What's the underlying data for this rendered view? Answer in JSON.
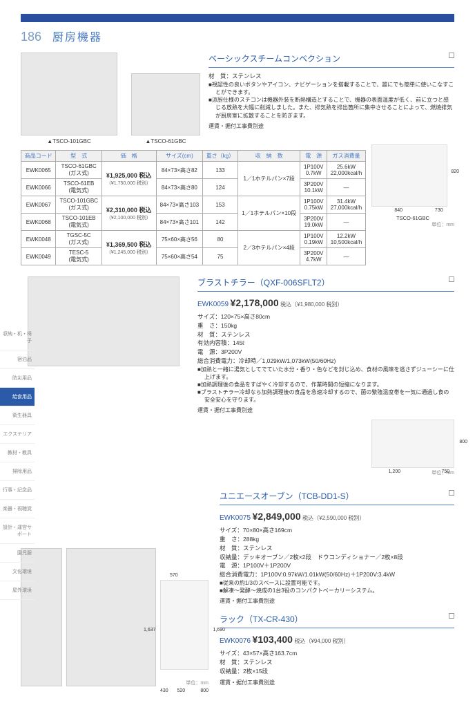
{
  "page": {
    "num": "186",
    "title": "厨房機器"
  },
  "sidebar": {
    "items": [
      {
        "label": "収納・机・椅子",
        "active": false
      },
      {
        "label": "宿泊品",
        "active": false
      },
      {
        "label": "防災用品",
        "active": false
      },
      {
        "label": "給食用品",
        "active": true
      },
      {
        "label": "衛生器具",
        "active": false
      },
      {
        "label": "エクステリア",
        "active": false
      },
      {
        "label": "教材・教具",
        "active": false
      },
      {
        "label": "掃除用品",
        "active": false
      },
      {
        "label": "行事・記念品",
        "active": false
      },
      {
        "label": "楽器・視聴覚",
        "active": false
      },
      {
        "label": "設計・運営サポート",
        "active": false
      },
      {
        "label": "園児服",
        "active": false
      },
      {
        "label": "文化環境",
        "active": false
      },
      {
        "label": "屋外環境",
        "active": false
      }
    ]
  },
  "product1": {
    "title": "ベーシックスチームコンベクション",
    "img1_label": "▲TSCO-101GBC",
    "img2_label": "▲TSCO-61GBC",
    "material": "材　質：ステンレス",
    "bullets": [
      "■視認性の良いボタンやアイコン、ナビゲーションを搭載することで、誰にでも簡単に使いこなすことができます。",
      "■涼厨仕様のスチコンは機器外装を断熱構造とすることで、機器の表面温度が低く、前に立つと感じる放熱を大幅に削減しました。また、排気熱を排出箇所に集中させることによって、燃焼排気が厨房室に拡散することを防ぎます。"
    ],
    "note": "運賃・据付工事費別途",
    "diagram_label": "TSCO-61GBC",
    "unit_label": "単位：mm",
    "dim1": "820",
    "dim2": "840",
    "dim3": "730"
  },
  "tableHeaders": [
    "商品コード",
    "型　式",
    "価　格",
    "サイズ(cm)",
    "重さ（kg）",
    "収　納　数",
    "電　源",
    "ガス消費量"
  ],
  "tableRows": [
    {
      "code": "EWK0065",
      "model": "TSCO-61GBC\n(ガス式)",
      "priceMain": "¥1,925,000 税込",
      "priceSub": "（¥1,750,000 税別）",
      "size": "84×73×高さ82",
      "weight": "133",
      "capacity": "1／1ホテルパン×7段",
      "power": "1P100V\n0.7kW",
      "gas": "25.6kW\n22,000kcal/h",
      "priceRowspan": 2,
      "capRowspan": 2
    },
    {
      "code": "EWK0066",
      "model": "TSCO-61EB\n(電気式)",
      "size": "84×73×高さ80",
      "weight": "124",
      "power": "3P200V\n10.1kW",
      "gas": "―"
    },
    {
      "code": "EWK0067",
      "model": "TSCO-101GBC\n(ガス式)",
      "priceMain": "¥2,310,000 税込",
      "priceSub": "（¥2,100,000 税別）",
      "size": "84×73×高さ103",
      "weight": "153",
      "capacity": "1／1ホテルパン×10段",
      "power": "1P100V\n0.75kW",
      "gas": "31.4kW\n27,000kcal/h",
      "priceRowspan": 2,
      "capRowspan": 2
    },
    {
      "code": "EWK0068",
      "model": "TSCO-101EB\n(電気式)",
      "size": "84×73×高さ101",
      "weight": "142",
      "power": "3P200V\n19.0kW",
      "gas": "―"
    },
    {
      "code": "EWK0048",
      "model": "TGSC-5C\n(ガス式)",
      "priceMain": "¥1,369,500 税込",
      "priceSub": "（¥1,245,000 税別）",
      "size": "75×60×高さ56",
      "weight": "80",
      "capacity": "2／3ホテルパン×4段",
      "power": "1P100V\n0.19kW",
      "gas": "12.2kW\n10,500kcal/h",
      "priceRowspan": 2,
      "capRowspan": 2
    },
    {
      "code": "EWK0049",
      "model": "TESC-5\n(電気式)",
      "size": "75×60×高さ54",
      "weight": "75",
      "power": "3P200V\n4.7kW",
      "gas": "―"
    }
  ],
  "product2": {
    "title": "ブラストチラー（QXF-006SFLT2）",
    "code": "EWK0059",
    "priceMain": "¥2,178,000",
    "priceSub": "税込（¥1,980,000 税別）",
    "specs": [
      "サイズ：120×75×高さ80cm",
      "重　さ：150kg",
      "材　質：ステンレス",
      "有効内容積：145ℓ",
      "電　源：3P200V",
      "総合消費電力：冷却時／1,029kW/1,073kW(50/60Hz)"
    ],
    "bullets": [
      "■加熱と一緒に湯気としてでていた水分・香り・色などを封じ込め、食材の風味を逃さずジューシーに仕上げます。",
      "■加熱調理後の食品をすばやく冷却するので、作業時間の短縮になります。",
      "■ブラストチラー冷却なら加熱調理後の食品を急速冷却するので、菌の繁殖温度帯を一気に通過し食の安全安心を守ります。"
    ],
    "note": "運賃・据付工事費別途",
    "unit_label": "単位：mm",
    "dim1": "1,200",
    "dim2": "750",
    "dim3": "800"
  },
  "product3": {
    "title": "ユニエースオーブン（TCB-DD1-S）",
    "code": "EWK0075",
    "priceMain": "¥2,849,000",
    "priceSub": "税込（¥2,590,000 税別）",
    "specs": [
      "サイズ：70×80×高さ169cm",
      "重　さ：288kg",
      "材　質：ステンレス",
      "収納量：デッキオーブン／2枚×2段　ドウコンディショナー／2枚×8段",
      "電　源：1P100V＋1P200V",
      "総合消費電力：1P100V:0.97kW/1.01kW(50/60Hz)＋1P200V:3.4kW"
    ],
    "bullets": [
      "■従来の約1/3のスペースに設置可能です。",
      "■解凍～発酵～焼成の1台3役のコンパクトベーカリーシステム。"
    ],
    "note": "運賃・据付工事費別途",
    "dim1": "570",
    "dim2": "430",
    "dim3": "520",
    "dim4": "800",
    "dim5": "1,637",
    "dim6": "1,690",
    "unit_label": "単位：mm"
  },
  "product4": {
    "title": "ラック（TX-CR-430）",
    "code": "EWK0076",
    "priceMain": "¥103,400",
    "priceSub": "税込（¥94,000 税別）",
    "specs": [
      "サイズ：43×57×高さ163.7cm",
      "材　質：ステンレス",
      "収納量：2枚×15段"
    ],
    "note": "運賃・据付工事費別途"
  }
}
